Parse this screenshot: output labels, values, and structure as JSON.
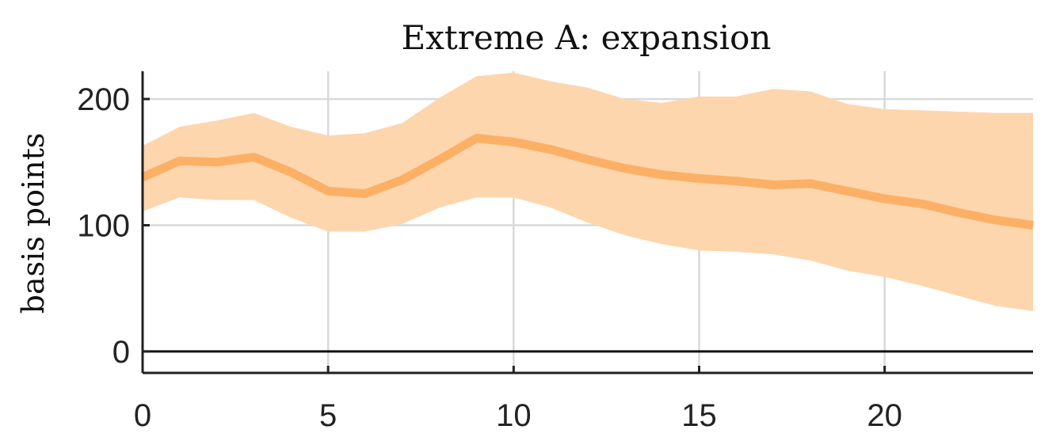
{
  "chart_data": {
    "type": "line",
    "title": "Extreme A: expansion",
    "xlabel": "",
    "ylabel": "basis points",
    "xlim": [
      0,
      24
    ],
    "ylim": [
      -17,
      222
    ],
    "x_ticks": [
      0,
      5,
      10,
      15,
      20
    ],
    "y_ticks": [
      0,
      100,
      200
    ],
    "grid": true,
    "zero_line": true,
    "series": [
      {
        "x": [
          0,
          1,
          2,
          3,
          4,
          5,
          6,
          7,
          8,
          9,
          10,
          11,
          12,
          13,
          14,
          15,
          16,
          17,
          18,
          19,
          20,
          21,
          22,
          23,
          24
        ],
        "values": [
          138,
          151,
          150,
          154,
          142,
          127,
          125,
          136,
          152,
          169,
          166,
          160,
          152,
          145,
          140,
          137,
          135,
          132,
          133,
          127,
          121,
          117,
          110,
          104,
          100
        ],
        "lower": [
          111,
          122,
          120,
          120,
          106,
          95,
          95,
          101,
          114,
          122,
          122,
          114,
          102,
          92,
          85,
          80,
          79,
          77,
          72,
          64,
          59,
          52,
          44,
          36,
          32
        ],
        "upper": [
          163,
          178,
          183,
          189,
          178,
          171,
          173,
          181,
          201,
          218,
          221,
          214,
          209,
          200,
          197,
          202,
          202,
          208,
          206,
          196,
          192,
          191,
          190,
          189,
          189
        ],
        "line_color": "#fcb066",
        "band_color": "#fdd6ae"
      }
    ]
  }
}
